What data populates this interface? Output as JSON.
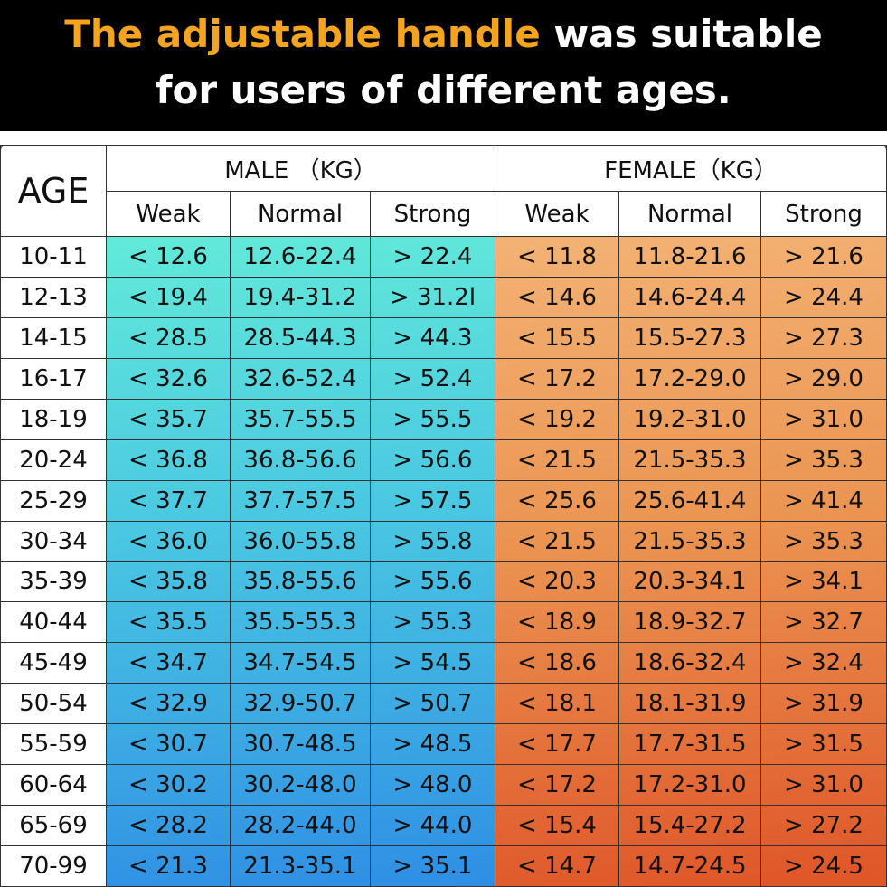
{
  "header": {
    "title_highlight": "The adjustable handle",
    "title_rest_1": "was suitable",
    "title_rest_2": "for users of different ages."
  },
  "table": {
    "age_header": "AGE",
    "groups": [
      "MALE （KG）",
      "FEMALE（KG）"
    ],
    "subheaders": [
      "Weak",
      "Normal",
      "Strong",
      "Weak",
      "Normal",
      "Strong"
    ],
    "rows": [
      [
        "10-11",
        "< 12.6",
        "12.6-22.4",
        "> 22.4",
        "< 11.8",
        "11.8-21.6",
        "> 21.6"
      ],
      [
        "12-13",
        "< 19.4",
        "19.4-31.2",
        "> 31.2l",
        "< 14.6",
        "14.6-24.4",
        "> 24.4"
      ],
      [
        "14-15",
        "< 28.5",
        "28.5-44.3",
        "> 44.3",
        "< 15.5",
        "15.5-27.3",
        "> 27.3"
      ],
      [
        "16-17",
        "< 32.6",
        "32.6-52.4",
        "> 52.4",
        "< 17.2",
        "17.2-29.0",
        "> 29.0"
      ],
      [
        "18-19",
        "< 35.7",
        "35.7-55.5",
        "> 55.5",
        "< 19.2",
        "19.2-31.0",
        "> 31.0"
      ],
      [
        "20-24",
        "< 36.8",
        "36.8-56.6",
        "> 56.6",
        "< 21.5",
        "21.5-35.3",
        "> 35.3"
      ],
      [
        "25-29",
        "< 37.7",
        "37.7-57.5",
        "> 57.5",
        "< 25.6",
        "25.6-41.4",
        "> 41.4"
      ],
      [
        "30-34",
        "< 36.0",
        "36.0-55.8",
        "> 55.8",
        "< 21.5",
        "21.5-35.3",
        "> 35.3"
      ],
      [
        "35-39",
        "< 35.8",
        "35.8-55.6",
        "> 55.6",
        "< 20.3",
        "20.3-34.1",
        "> 34.1"
      ],
      [
        "40-44",
        "< 35.5",
        "35.5-55.3",
        "> 55.3",
        "< 18.9",
        "18.9-32.7",
        "> 32.7"
      ],
      [
        "45-49",
        "< 34.7",
        "34.7-54.5",
        "> 54.5",
        "< 18.6",
        "18.6-32.4",
        "> 32.4"
      ],
      [
        "50-54",
        "< 32.9",
        "32.9-50.7",
        "> 50.7",
        "< 18.1",
        "18.1-31.9",
        "> 31.9"
      ],
      [
        "55-59",
        "< 30.7",
        "30.7-48.5",
        "> 48.5",
        "< 17.7",
        "17.7-31.5",
        "> 31.5"
      ],
      [
        "60-64",
        "< 30.2",
        "30.2-48.0",
        "> 48.0",
        "< 17.2",
        "17.2-31.0",
        "> 31.0"
      ],
      [
        "65-69",
        "< 28.2",
        "28.2-44.0",
        "> 44.0",
        "< 15.4",
        "15.4-27.2",
        "> 27.2"
      ],
      [
        "70-99",
        "< 21.3",
        "21.3-35.1",
        "> 35.1",
        "< 14.7",
        "14.7-24.5",
        "> 24.5"
      ]
    ]
  }
}
